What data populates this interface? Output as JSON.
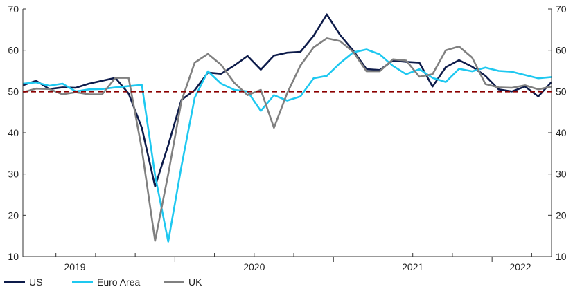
{
  "chart_data": {
    "type": "line",
    "title": "",
    "xlabel": "",
    "ylabel": "",
    "ylim": [
      10,
      70
    ],
    "yticks": [
      10,
      20,
      30,
      40,
      50,
      60,
      70
    ],
    "x_year_labels": [
      "2019",
      "2020",
      "2021",
      "2022"
    ],
    "x_start": "2019-01",
    "x_end": "2022-05",
    "months": [
      "2019-01",
      "2019-02",
      "2019-03",
      "2019-04",
      "2019-05",
      "2019-06",
      "2019-07",
      "2019-08",
      "2019-09",
      "2019-10",
      "2019-11",
      "2019-12",
      "2020-01",
      "2020-02",
      "2020-03",
      "2020-04",
      "2020-05",
      "2020-06",
      "2020-07",
      "2020-08",
      "2020-09",
      "2020-10",
      "2020-11",
      "2020-12",
      "2021-01",
      "2021-02",
      "2021-03",
      "2021-04",
      "2021-05",
      "2021-06",
      "2021-07",
      "2021-08",
      "2021-09",
      "2021-10",
      "2021-11",
      "2021-12",
      "2022-01",
      "2022-02",
      "2022-03",
      "2022-04",
      "2022-05"
    ],
    "reference_line": {
      "value": 50,
      "color": "#8b0000",
      "style": "dashed"
    },
    "grid": false,
    "legend_position": "bottom-left",
    "series": [
      {
        "name": "US",
        "color": "#0d1b4a",
        "values": [
          51.5,
          52.6,
          50.6,
          51.0,
          50.9,
          51.9,
          52.6,
          53.3,
          49.5,
          41.2,
          27.0,
          37.0,
          48.0,
          50.3,
          54.6,
          54.3,
          56.3,
          58.6,
          55.3,
          58.7,
          59.4,
          59.6,
          63.5,
          68.7,
          63.7,
          59.9,
          55.4,
          55.2,
          57.5,
          57.2,
          57.0,
          51.2,
          55.9,
          57.6,
          56.0,
          53.8,
          50.5,
          50.0,
          51.2,
          48.8,
          52.3
        ]
      },
      {
        "name": "Euro Area",
        "color": "#1ec8f0",
        "values": [
          51.9,
          52.2,
          51.4,
          51.9,
          50.0,
          50.5,
          50.6,
          51.0,
          51.3,
          51.6,
          29.7,
          13.6,
          31.9,
          48.5,
          54.9,
          51.9,
          50.4,
          50.0,
          45.3,
          49.1,
          47.8,
          48.8,
          53.2,
          53.8,
          56.9,
          59.5,
          60.2,
          59.0,
          56.2,
          54.2,
          55.4,
          53.3,
          52.3,
          55.5,
          54.9,
          55.8,
          55.0,
          54.8,
          54.0,
          53.2,
          53.5
        ]
      },
      {
        "name": "UK",
        "color": "#808080",
        "values": [
          49.8,
          50.7,
          50.6,
          49.3,
          49.8,
          49.3,
          49.3,
          53.3,
          53.3,
          36.0,
          13.8,
          30.0,
          47.7,
          57.0,
          59.1,
          56.5,
          52.1,
          49.1,
          50.4,
          41.2,
          49.6,
          56.3,
          60.7,
          62.9,
          62.2,
          59.6,
          54.9,
          54.9,
          57.8,
          57.5,
          53.6,
          54.2,
          60.0,
          60.9,
          58.2,
          51.8,
          51.0,
          50.9,
          51.5,
          50.5,
          51.2
        ]
      }
    ]
  }
}
